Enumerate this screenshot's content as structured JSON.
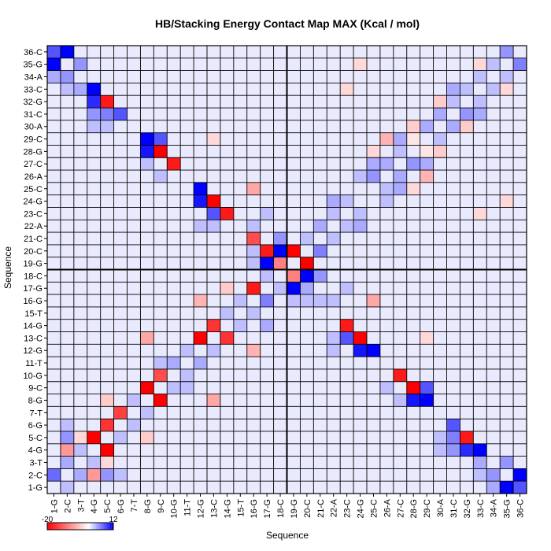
{
  "chart_data": {
    "type": "heatmap",
    "title": "HB/Stacking Energy Contact Map MAX (Kcal / mol)",
    "xlabel": "Sequence",
    "ylabel": "Sequence",
    "x_labels": [
      "1-G",
      "2-C",
      "3-T",
      "4-G",
      "5-C",
      "6-G",
      "7-T",
      "8-G",
      "9-C",
      "10-G",
      "11-T",
      "12-G",
      "13-C",
      "14-G",
      "15-T",
      "16-G",
      "17-G",
      "18-C",
      "19-G",
      "20-C",
      "21-C",
      "22-A",
      "23-C",
      "24-G",
      "25-C",
      "26-A",
      "27-C",
      "28-G",
      "29-C",
      "30-A",
      "31-C",
      "32-G",
      "33-C",
      "34-A",
      "35-G",
      "36-C"
    ],
    "y_labels": [
      "1-G",
      "2-C",
      "3-T",
      "4-G",
      "5-C",
      "6-G",
      "7-T",
      "8-G",
      "9-C",
      "10-G",
      "11-T",
      "12-G",
      "13-C",
      "14-G",
      "15-T",
      "16-G",
      "17-G",
      "18-C",
      "19-G",
      "20-C",
      "21-C",
      "22-A",
      "23-C",
      "24-G",
      "25-C",
      "26-A",
      "27-C",
      "28-G",
      "29-C",
      "30-A",
      "31-C",
      "32-G",
      "33-C",
      "34-A",
      "35-G",
      "36-C"
    ],
    "color_scale": {
      "min": -20,
      "max": 12,
      "low_color": "#ff0000",
      "mid_color": "#ffffff",
      "high_color": "#0000ff"
    },
    "legend_ticks": [
      {
        "label": "-20",
        "value": -20
      },
      {
        "label": "12",
        "value": 12
      }
    ],
    "grid": true,
    "divider_after": 18,
    "default_value": 1,
    "cells": [
      [
        1,
        2,
        7
      ],
      [
        2,
        3,
        4
      ],
      [
        1,
        35,
        12
      ],
      [
        1,
        36,
        8
      ],
      [
        2,
        36,
        12
      ],
      [
        2,
        34,
        5
      ],
      [
        3,
        35,
        5
      ],
      [
        4,
        5,
        -20
      ],
      [
        4,
        33,
        12
      ],
      [
        4,
        32,
        10
      ],
      [
        5,
        6,
        -16
      ],
      [
        4,
        31,
        5
      ],
      [
        5,
        32,
        -18
      ],
      [
        3,
        33,
        4
      ],
      [
        6,
        7,
        -15
      ],
      [
        6,
        31,
        8
      ],
      [
        5,
        31,
        6
      ],
      [
        8,
        9,
        -20
      ],
      [
        8,
        29,
        12
      ],
      [
        8,
        28,
        11
      ],
      [
        9,
        28,
        -20
      ],
      [
        9,
        29,
        8
      ],
      [
        10,
        27,
        -18
      ],
      [
        9,
        10,
        -14
      ],
      [
        12,
        13,
        -20
      ],
      [
        12,
        25,
        12
      ],
      [
        12,
        24,
        11
      ],
      [
        13,
        24,
        -20
      ],
      [
        13,
        14,
        -16
      ],
      [
        14,
        23,
        -18
      ],
      [
        13,
        23,
        8
      ],
      [
        16,
        17,
        -18
      ],
      [
        16,
        21,
        -14
      ],
      [
        17,
        20,
        -18
      ],
      [
        17,
        19,
        12
      ],
      [
        18,
        19,
        -10
      ],
      [
        18,
        20,
        12
      ],
      [
        19,
        20,
        -20
      ],
      [
        17,
        18,
        3
      ],
      [
        2,
        4,
        -8
      ],
      [
        5,
        8,
        -4
      ],
      [
        5,
        3,
        -3
      ],
      [
        8,
        13,
        -7
      ],
      [
        12,
        16,
        -6
      ],
      [
        14,
        17,
        -4
      ],
      [
        16,
        25,
        -7
      ],
      [
        13,
        29,
        -3
      ],
      [
        23,
        33,
        -3
      ],
      [
        24,
        35,
        -3
      ],
      [
        25,
        28,
        -3
      ],
      [
        26,
        29,
        -6
      ],
      [
        28,
        30,
        -4
      ],
      [
        29,
        28,
        -2
      ],
      [
        30,
        32,
        -4
      ],
      [
        35,
        33,
        -3
      ],
      [
        17,
        16,
        6
      ],
      [
        17,
        14,
        4
      ],
      [
        16,
        15,
        3
      ],
      [
        21,
        20,
        6
      ],
      [
        20,
        17,
        4
      ],
      [
        21,
        18,
        5
      ],
      [
        5,
        2,
        5
      ],
      [
        6,
        2,
        3
      ],
      [
        3,
        2,
        4
      ],
      [
        2,
        1,
        3
      ],
      [
        28,
        27,
        5
      ],
      [
        29,
        27,
        4
      ],
      [
        27,
        26,
        4
      ],
      [
        25,
        26,
        5
      ],
      [
        25,
        27,
        4
      ],
      [
        24,
        26,
        3
      ],
      [
        24,
        22,
        4
      ],
      [
        22,
        23,
        3
      ],
      [
        31,
        30,
        4
      ],
      [
        32,
        31,
        5
      ],
      [
        33,
        31,
        4
      ],
      [
        30,
        29,
        3
      ],
      [
        29,
        30,
        4
      ],
      [
        27,
        28,
        3
      ],
      [
        26,
        25,
        3
      ],
      [
        23,
        22,
        3
      ],
      [
        21,
        22,
        4
      ],
      [
        22,
        21,
        3
      ],
      [
        20,
        21,
        3
      ],
      [
        23,
        24,
        3
      ],
      [
        9,
        11,
        3
      ],
      [
        10,
        11,
        4
      ],
      [
        11,
        12,
        3
      ],
      [
        12,
        11,
        4
      ],
      [
        13,
        12,
        3
      ],
      [
        14,
        15,
        3
      ],
      [
        15,
        16,
        3
      ],
      [
        11,
        10,
        3
      ],
      [
        10,
        9,
        3
      ],
      [
        7,
        8,
        3
      ],
      [
        6,
        5,
        3
      ],
      [
        7,
        6,
        3
      ],
      [
        3,
        4,
        3
      ],
      [
        4,
        3,
        3
      ],
      [
        33,
        34,
        3
      ],
      [
        34,
        35,
        3
      ],
      [
        35,
        36,
        5
      ],
      [
        36,
        35,
        6
      ],
      [
        34,
        33,
        3
      ],
      [
        32,
        33,
        3
      ],
      [
        31,
        32,
        3
      ],
      [
        1,
        34,
        4
      ],
      [
        2,
        33,
        3
      ],
      [
        4,
        30,
        3
      ],
      [
        5,
        30,
        3
      ],
      [
        8,
        27,
        3
      ],
      [
        9,
        26,
        3
      ],
      [
        12,
        22,
        3
      ],
      [
        13,
        22,
        3
      ],
      [
        16,
        22,
        3
      ],
      [
        17,
        23,
        3
      ],
      [
        20,
        16,
        3
      ],
      [
        19,
        16,
        3
      ],
      [
        21,
        16,
        3
      ]
    ]
  }
}
